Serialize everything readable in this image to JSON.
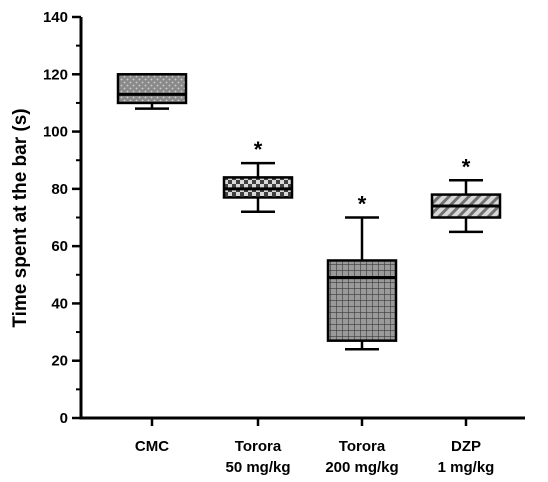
{
  "chart_data": {
    "type": "box",
    "ylabel": "Time spent at the bar (s)",
    "xlabel": "",
    "ylim": [
      0,
      140
    ],
    "y_ticks": [
      0,
      20,
      40,
      60,
      80,
      100,
      120,
      140
    ],
    "categories": [
      [
        "CMC"
      ],
      [
        "Torora",
        "50 mg/kg"
      ],
      [
        "Torora",
        "200 mg/kg"
      ],
      [
        "DZP",
        "1 mg/kg"
      ]
    ],
    "boxes": [
      {
        "whisker_low": 108,
        "q1": 110,
        "median": 113,
        "q3": 120,
        "whisker_high": 120,
        "pattern": "dots",
        "significance": ""
      },
      {
        "whisker_low": 72,
        "q1": 77,
        "median": 80,
        "q3": 84,
        "whisker_high": 89,
        "pattern": "checker",
        "significance": "*"
      },
      {
        "whisker_low": 24,
        "q1": 27,
        "median": 49,
        "q3": 55,
        "whisker_high": 70,
        "pattern": "grid",
        "significance": "*"
      },
      {
        "whisker_low": 65,
        "q1": 70,
        "median": 74,
        "q3": 78,
        "whisker_high": 83,
        "pattern": "diagonal",
        "significance": "*"
      }
    ],
    "grid": false,
    "colors": {
      "axis": "#000000",
      "box_fill": "#8a8a8a",
      "pattern_light": "#c8c8c8",
      "pattern_dark": "#3a3a3a"
    }
  }
}
